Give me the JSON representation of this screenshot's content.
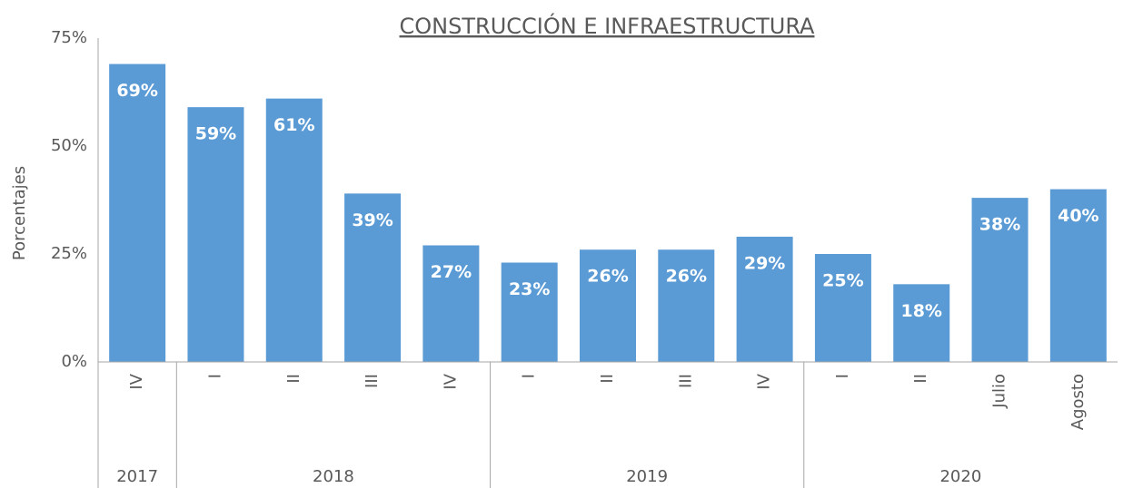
{
  "chart_data": {
    "type": "bar",
    "title": "CONSTRUCCIÓN E INFRAESTRUCTURA",
    "y_label": "Porcentajes",
    "categories": [
      "IV",
      "I",
      "II",
      "III",
      "IV",
      "I",
      "II",
      "III",
      "IV",
      "I",
      "II",
      "Julio",
      "Agosto"
    ],
    "groups": [
      {
        "label": "2017",
        "count": 1
      },
      {
        "label": "2018",
        "count": 4
      },
      {
        "label": "2019",
        "count": 4
      },
      {
        "label": "2020",
        "count": 4
      }
    ],
    "values": [
      69,
      59,
      61,
      39,
      27,
      23,
      26,
      26,
      29,
      25,
      18,
      38,
      40
    ],
    "value_labels": [
      "69%",
      "59%",
      "61%",
      "39%",
      "27%",
      "23%",
      "26%",
      "26%",
      "29%",
      "25%",
      "18%",
      "38%",
      "40%"
    ],
    "color": "#5b9bd5",
    "ylim": [
      0,
      75
    ],
    "yticks": [
      {
        "value": 0,
        "label": "0%"
      },
      {
        "value": 25,
        "label": "25%"
      },
      {
        "value": 50,
        "label": "50%"
      },
      {
        "value": 75,
        "label": "75%"
      }
    ],
    "grid": false
  }
}
